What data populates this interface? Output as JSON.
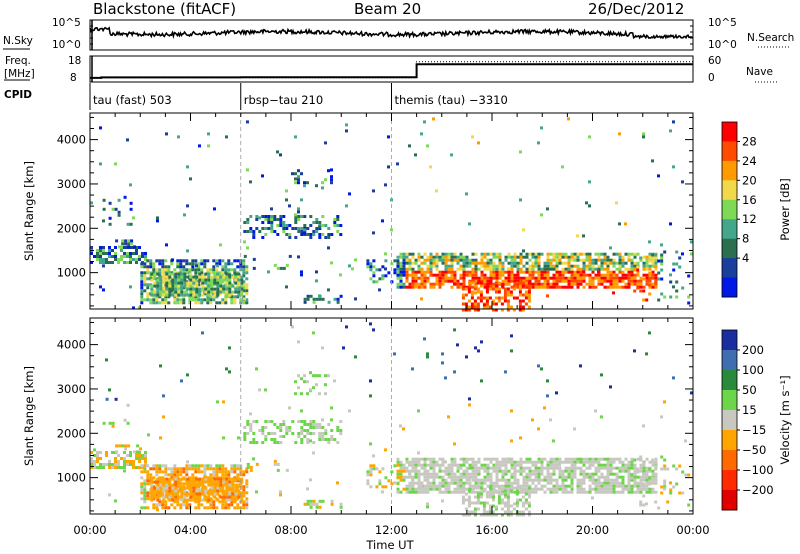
{
  "header": {
    "station": "Blackstone (fitACF)",
    "beam": "Beam 20",
    "date": "26/Dec/2012"
  },
  "noise_panel": {
    "left_label": "N.Sky",
    "right_label": "N.Search",
    "ticks_left": [
      "10^5",
      "10^0"
    ],
    "ticks_right": [
      "10^5",
      "10^0"
    ]
  },
  "freq_panel": {
    "left_label_1": "Freq.",
    "left_label_2": "[MHz]",
    "right_label": "Nave",
    "ticks_left": [
      "18",
      "8"
    ],
    "ticks_right": [
      "60",
      "0"
    ],
    "freq_steps": [
      [
        0,
        9.3
      ],
      [
        0.45,
        9.5
      ],
      [
        6,
        9.6
      ],
      [
        13,
        15.0
      ],
      [
        24,
        15.0
      ]
    ],
    "nave_steps": [
      [
        0,
        8
      ],
      [
        13,
        48
      ],
      [
        24,
        48
      ]
    ]
  },
  "cpid": {
    "label": "CPID",
    "segments": [
      {
        "start": 0,
        "label": "tau (fast) 503"
      },
      {
        "start": 6.0,
        "label": "rbsp−tau 210"
      },
      {
        "start": 12.0,
        "label": "themis (tau) −3310"
      }
    ]
  },
  "chart_data": [
    {
      "type": "heatmap",
      "name": "Power",
      "ylabel": "Slant Range [km]",
      "yticks": [
        "1000",
        "2000",
        "3000",
        "4000"
      ],
      "ylim": [
        180,
        4600
      ],
      "xlim": [
        0,
        24
      ],
      "colorbar_label": "Power [dB]",
      "colorbar_ticks": [
        "28",
        "24",
        "20",
        "16",
        "12",
        "8",
        "4"
      ],
      "colorbar_colors": [
        "#ff0000",
        "#ff4a00",
        "#ff9a00",
        "#f2d84b",
        "#7ed957",
        "#44a78c",
        "#2a7050",
        "#1a3e9b",
        "#0018e6"
      ]
    },
    {
      "type": "heatmap",
      "name": "Velocity",
      "ylabel": "Slant Range [km]",
      "yticks": [
        "1000",
        "2000",
        "3000",
        "4000"
      ],
      "ylim": [
        180,
        4600
      ],
      "xlim": [
        0,
        24
      ],
      "xlabel": "Time UT",
      "xticks": [
        "00:00",
        "04:00",
        "08:00",
        "12:00",
        "16:00",
        "20:00",
        "00:00"
      ],
      "colorbar_label": "Velocity [m s⁻¹]",
      "colorbar_ticks": [
        "200",
        "100",
        "50",
        "15",
        "−15",
        "−50",
        "−100",
        "−200"
      ],
      "colorbar_colors": [
        "#1a2ea0",
        "#3e6db0",
        "#2a8a3c",
        "#6dd54a",
        "#c8c8c0",
        "#ffa500",
        "#ff6a00",
        "#ff2a00",
        "#e00000"
      ]
    }
  ]
}
